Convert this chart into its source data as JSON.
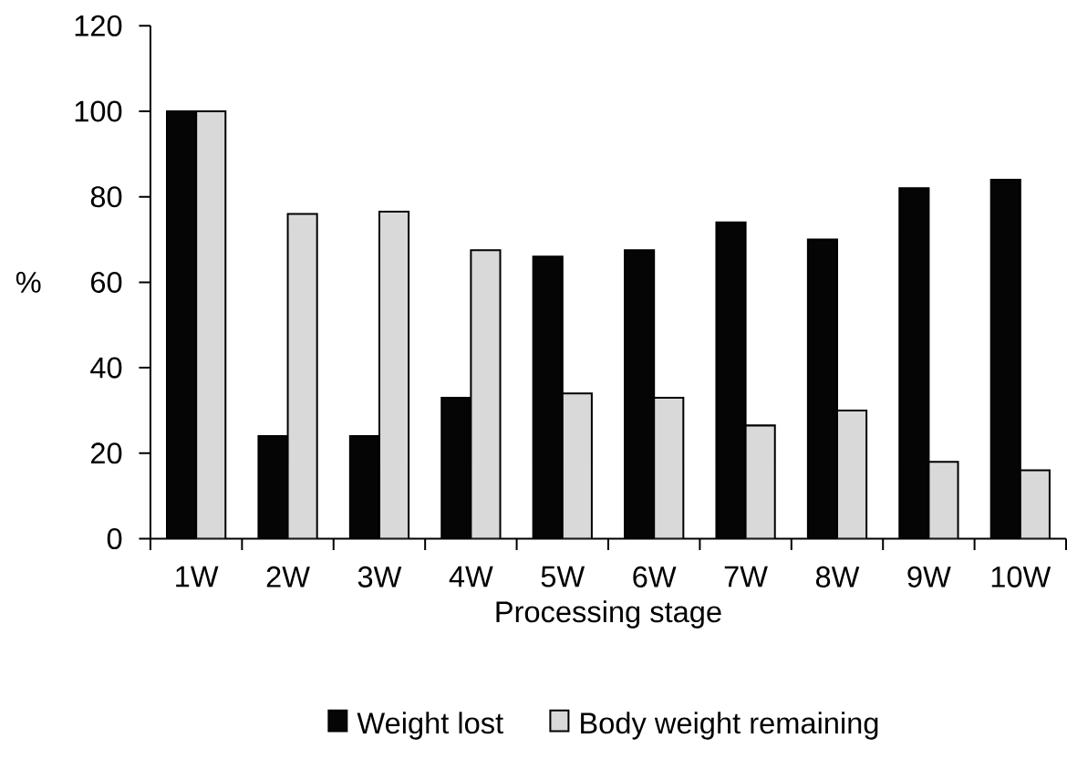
{
  "chart_data": {
    "type": "bar",
    "xlabel": "Processing stage",
    "ylabel": "%",
    "categories": [
      "1W",
      "2W",
      "3W",
      "4W",
      "5W",
      "6W",
      "7W",
      "8W",
      "9W",
      "10W"
    ],
    "series": [
      {
        "name": "Weight lost",
        "color": "#050505",
        "values": [
          100,
          24,
          24,
          33,
          66,
          67.5,
          74,
          70,
          82,
          84
        ]
      },
      {
        "name": "Body weight remaining",
        "color": "#d9d9d9",
        "values": [
          100,
          76,
          76.5,
          67.5,
          34,
          33,
          26.5,
          30,
          18,
          16
        ]
      }
    ],
    "ylim": [
      0,
      120
    ],
    "yticks": [
      0,
      20,
      40,
      60,
      80,
      100,
      120
    ],
    "grid": false,
    "legend": "bottom"
  }
}
